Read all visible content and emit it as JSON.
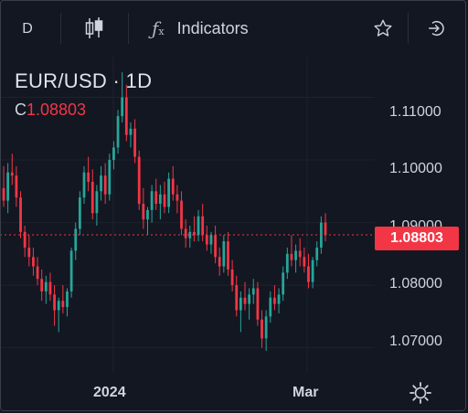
{
  "toolbar": {
    "interval": "D",
    "chart_type_icon": "candles-icon",
    "indicators_icon": "fx-icon",
    "indicators_label": "Indicators",
    "favorite_icon": "star-icon",
    "login_icon": "login-icon"
  },
  "legend": {
    "symbol": "EUR/USD · 1D",
    "close_label": "C",
    "close_value": "1.08803"
  },
  "price_scale": {
    "labels": [
      "1.11000",
      "1.10000",
      "1.09000",
      "1.08000",
      "1.07000"
    ],
    "last_price": "1.08803"
  },
  "time_scale": {
    "labels": [
      "2024",
      "Mar"
    ],
    "settings_icon": "gear-icon"
  },
  "colors": {
    "background": "#131722",
    "up": "#26a69a",
    "down": "#f23645",
    "grid": "#1e222d",
    "text": "#d1d4dc"
  },
  "chart_data": {
    "type": "candlestick",
    "title": "EUR/USD · 1D",
    "ylim": [
      1.066,
      1.1165
    ],
    "y_ticks": [
      1.07,
      1.08,
      1.09,
      1.1,
      1.11
    ],
    "last_close": 1.08803,
    "x_tick_labels": [
      "2024",
      "Mar"
    ],
    "candles": [
      [
        1.0955,
        1.099,
        1.0925,
        1.0935
      ],
      [
        1.0935,
        1.0995,
        1.0915,
        1.098
      ],
      [
        1.098,
        1.101,
        1.096,
        1.0975
      ],
      [
        1.0975,
        1.099,
        1.0925,
        1.094
      ],
      [
        1.094,
        1.095,
        1.0875,
        1.0885
      ],
      [
        1.0885,
        1.0895,
        1.0845,
        1.086
      ],
      [
        1.086,
        1.088,
        1.083,
        1.0845
      ],
      [
        1.0845,
        1.086,
        1.0815,
        1.083
      ],
      [
        1.083,
        1.0845,
        1.08,
        1.081
      ],
      [
        1.081,
        1.0825,
        1.0775,
        1.079
      ],
      [
        1.079,
        1.0815,
        1.077,
        1.0805
      ],
      [
        1.0805,
        1.082,
        1.0775,
        1.0785
      ],
      [
        1.0785,
        1.08,
        1.0735,
        1.076
      ],
      [
        1.076,
        1.078,
        1.0725,
        1.0775
      ],
      [
        1.0775,
        1.08,
        1.0755,
        1.0765
      ],
      [
        1.0765,
        1.0795,
        1.075,
        1.079
      ],
      [
        1.079,
        1.086,
        1.078,
        1.0855
      ],
      [
        1.0855,
        1.09,
        1.084,
        1.089
      ],
      [
        1.089,
        1.095,
        1.088,
        1.094
      ],
      [
        1.094,
        1.099,
        1.093,
        1.098
      ],
      [
        1.098,
        1.1005,
        1.095,
        1.0965
      ],
      [
        1.0965,
        1.0985,
        1.0905,
        1.0915
      ],
      [
        1.0915,
        1.096,
        1.0895,
        1.095
      ],
      [
        1.095,
        1.099,
        1.0935,
        1.0975
      ],
      [
        1.0975,
        1.0995,
        1.093,
        1.0945
      ],
      [
        1.0945,
        1.101,
        1.0935,
        1.1
      ],
      [
        1.1,
        1.103,
        1.0985,
        1.102
      ],
      [
        1.102,
        1.108,
        1.101,
        1.107
      ],
      [
        1.107,
        1.114,
        1.106,
        1.11
      ],
      [
        1.11,
        1.112,
        1.103,
        1.104
      ],
      [
        1.104,
        1.106,
        1.102,
        1.105
      ],
      [
        1.105,
        1.1065,
        1.0995,
        1.1005
      ],
      [
        1.1005,
        1.1015,
        1.092,
        1.093
      ],
      [
        1.093,
        1.0955,
        1.089,
        1.0905
      ],
      [
        1.0905,
        1.0925,
        1.088,
        1.092
      ],
      [
        1.092,
        1.096,
        1.09,
        1.095
      ],
      [
        1.095,
        1.097,
        1.092,
        1.093
      ],
      [
        1.093,
        1.096,
        1.0905,
        1.0945
      ],
      [
        1.0945,
        1.0965,
        1.0915,
        1.0925
      ],
      [
        1.0925,
        1.098,
        1.0915,
        1.097
      ],
      [
        1.097,
        1.099,
        1.0935,
        1.0945
      ],
      [
        1.0945,
        1.096,
        1.0915,
        1.0935
      ],
      [
        1.0935,
        1.095,
        1.088,
        1.089
      ],
      [
        1.089,
        1.0905,
        1.086,
        1.0875
      ],
      [
        1.0875,
        1.0895,
        1.086,
        1.0885
      ],
      [
        1.0885,
        1.091,
        1.087,
        1.088
      ],
      [
        1.088,
        1.092,
        1.087,
        1.091
      ],
      [
        1.091,
        1.093,
        1.087,
        1.088
      ],
      [
        1.088,
        1.0895,
        1.0855,
        1.0865
      ],
      [
        1.0865,
        1.0885,
        1.085,
        1.088
      ],
      [
        1.088,
        1.0895,
        1.0835,
        1.0845
      ],
      [
        1.0845,
        1.086,
        1.0815,
        1.083
      ],
      [
        1.083,
        1.088,
        1.082,
        1.087
      ],
      [
        1.087,
        1.0885,
        1.0815,
        1.0825
      ],
      [
        1.0825,
        1.084,
        1.079,
        1.08
      ],
      [
        1.08,
        1.0815,
        1.075,
        1.076
      ],
      [
        1.076,
        1.079,
        1.0725,
        1.078
      ],
      [
        1.078,
        1.0805,
        1.076,
        1.077
      ],
      [
        1.077,
        1.0795,
        1.0745,
        1.0785
      ],
      [
        1.0785,
        1.081,
        1.077,
        1.0795
      ],
      [
        1.0795,
        1.0805,
        1.0735,
        1.0745
      ],
      [
        1.0745,
        1.076,
        1.07,
        1.0715
      ],
      [
        1.0715,
        1.076,
        1.0695,
        1.075
      ],
      [
        1.075,
        1.079,
        1.074,
        1.078
      ],
      [
        1.078,
        1.08,
        1.076,
        1.077
      ],
      [
        1.077,
        1.0795,
        1.0755,
        1.0785
      ],
      [
        1.0785,
        1.083,
        1.0775,
        1.082
      ],
      [
        1.082,
        1.086,
        1.081,
        1.085
      ],
      [
        1.085,
        1.088,
        1.083,
        1.084
      ],
      [
        1.084,
        1.0865,
        1.082,
        1.0855
      ],
      [
        1.0855,
        1.0875,
        1.083,
        1.0845
      ],
      [
        1.0845,
        1.086,
        1.082,
        1.083
      ],
      [
        1.083,
        1.085,
        1.0795,
        1.0805
      ],
      [
        1.0805,
        1.0845,
        1.0795,
        1.084
      ],
      [
        1.084,
        1.087,
        1.083,
        1.086
      ],
      [
        1.086,
        1.091,
        1.085,
        1.09
      ],
      [
        1.09,
        1.0915,
        1.087,
        1.088
      ]
    ]
  }
}
